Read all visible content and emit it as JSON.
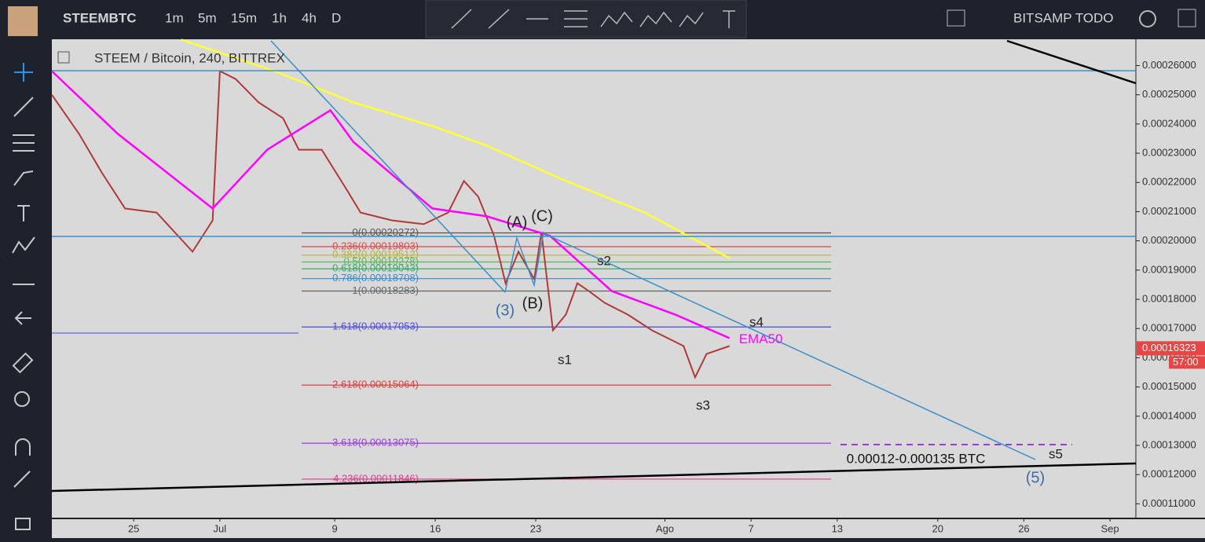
{
  "toolbar": {
    "symbol": "STEEMBTC",
    "intervals": [
      "1m",
      "5m",
      "15m",
      "1h",
      "4h",
      "D"
    ],
    "layout_name": "BITSAMP TODO"
  },
  "chart_data": {
    "type": "line",
    "title": "STEEM / Bitcoin, 240, BITTREX",
    "xlim": [
      170.3,
      245.8
    ],
    "xticks": [
      {
        "value": 176,
        "label": "25"
      },
      {
        "value": 182,
        "label": "Jul"
      },
      {
        "value": 190,
        "label": "9"
      },
      {
        "value": 197,
        "label": "16"
      },
      {
        "value": 204,
        "label": "23"
      },
      {
        "value": 213,
        "label": "Ago"
      },
      {
        "value": 219,
        "label": "7"
      },
      {
        "value": 225,
        "label": "13"
      },
      {
        "value": 232,
        "label": "20"
      },
      {
        "value": 238,
        "label": "26"
      },
      {
        "value": 244,
        "label": "Sep"
      }
    ],
    "ylim": [
      0.000105,
      0.000269
    ],
    "yticks": [
      {
        "value": 0.00011,
        "label": "0.00011000"
      },
      {
        "value": 0.00012,
        "label": "0.00012000"
      },
      {
        "value": 0.00013,
        "label": "0.00013000"
      },
      {
        "value": 0.00014,
        "label": "0.00014000"
      },
      {
        "value": 0.00015,
        "label": "0.00015000"
      },
      {
        "value": 0.00016,
        "label": "0.00016000"
      },
      {
        "value": 0.00017,
        "label": "0.00017000"
      },
      {
        "value": 0.00018,
        "label": "0.00018000"
      },
      {
        "value": 0.00019,
        "label": "0.00019000"
      },
      {
        "value": 0.0002,
        "label": "0.00020000"
      },
      {
        "value": 0.00021,
        "label": "0.00021000"
      },
      {
        "value": 0.00022,
        "label": "0.00022000"
      },
      {
        "value": 0.00023,
        "label": "0.00023000"
      },
      {
        "value": 0.00024,
        "label": "0.00024000"
      },
      {
        "value": 0.00025,
        "label": "0.00025000"
      },
      {
        "value": 0.00026,
        "label": "0.00026000"
      }
    ],
    "series": [
      {
        "color": "#b03a3a",
        "x": [
          170.3,
          172.2,
          173.8,
          175.4,
          177.6,
          180.1,
          181.5,
          182.0,
          183.1,
          184.7,
          186.4,
          187.5,
          189.1,
          190.8,
          191.8,
          194.0,
          196.2,
          197.9,
          199.0,
          200.0,
          201.1,
          201.9,
          202.8,
          203.9,
          204.4,
          205.2,
          206.1,
          206.9,
          207.7,
          208.8,
          210.4,
          212.1,
          213.2,
          214.3,
          215.1,
          215.9,
          217.5
        ],
        "values": [
          0.00025,
          0.0002366,
          0.0002232,
          0.0002111,
          0.0002097,
          0.0001963,
          0.000207,
          0.0002581,
          0.0002554,
          0.0002474,
          0.000242,
          0.0002312,
          0.0002312,
          0.0002178,
          0.0002097,
          0.000207,
          0.0002057,
          0.0002097,
          0.0002205,
          0.0002151,
          0.0002017,
          0.0001855,
          0.0001963,
          0.0001869,
          0.000203,
          0.0001694,
          0.0001748,
          0.0001855,
          0.0001828,
          0.0001788,
          0.0001748,
          0.0001694,
          0.0001667,
          0.000164,
          0.0001533,
          0.0001613,
          0.000164
        ]
      },
      {
        "name": "EMA50",
        "color": "#ff00ff",
        "x": [
          170.3,
          174.9,
          181.5,
          185.3,
          189.7,
          191.3,
          196.8,
          200.6,
          205.0,
          209.3,
          213.7,
          217.5
        ],
        "values": [
          0.0002581,
          0.0002366,
          0.0002111,
          0.0002312,
          0.0002447,
          0.0002339,
          0.0002111,
          0.0002084,
          0.0002017,
          0.0001828,
          0.0001748,
          0.0001667
        ]
      },
      {
        "color": "#ffff33",
        "x": [
          179.3,
          185.8,
          191.3,
          196.8,
          200.6,
          206.1,
          211.6,
          217.5
        ],
        "values": [
          0.0002689,
          0.0002581,
          0.0002474,
          0.0002393,
          0.0002326,
          0.0002205,
          0.0002097,
          0.0001941
        ]
      }
    ],
    "fib_levels": [
      {
        "label": "0(0.00020272)",
        "value": 0.00020272,
        "color": "#555555"
      },
      {
        "label": "0.236(0.00019803)",
        "value": 0.00019803,
        "color": "#e04848"
      },
      {
        "label": "0.382(0.00019512)",
        "value": 0.00019512,
        "color": "#b5b53a"
      },
      {
        "label": "0.5(0.00019278)",
        "value": 0.00019278,
        "color": "#5cb85c"
      },
      {
        "label": "0.618(0.00019043)",
        "value": 0.00019043,
        "color": "#39a96b"
      },
      {
        "label": "0.786(0.00018708)",
        "value": 0.00018708,
        "color": "#3a8fc9"
      },
      {
        "label": "1(0.00018283)",
        "value": 0.00018283,
        "color": "#666666"
      },
      {
        "label": "1.618(0.00017053)",
        "value": 0.00017053,
        "color": "#4a4ae0"
      },
      {
        "label": "2.618(0.00015064)",
        "value": 0.00015064,
        "color": "#e03a3a"
      },
      {
        "label": "3.618(0.00013075)",
        "value": 0.00013075,
        "color": "#9a3ae0"
      },
      {
        "label": "4.236(0.00011846)",
        "value": 0.00011846,
        "color": "#e03a8a"
      }
    ],
    "annotations": [
      "(A)",
      "(C)",
      "(3)",
      "(B)",
      "s1",
      "s2",
      "s3",
      "s4",
      "s5",
      "(5)",
      "0.00012-0.000135 BTC"
    ],
    "last_price": 0.00016323,
    "countdown": "57:00"
  }
}
